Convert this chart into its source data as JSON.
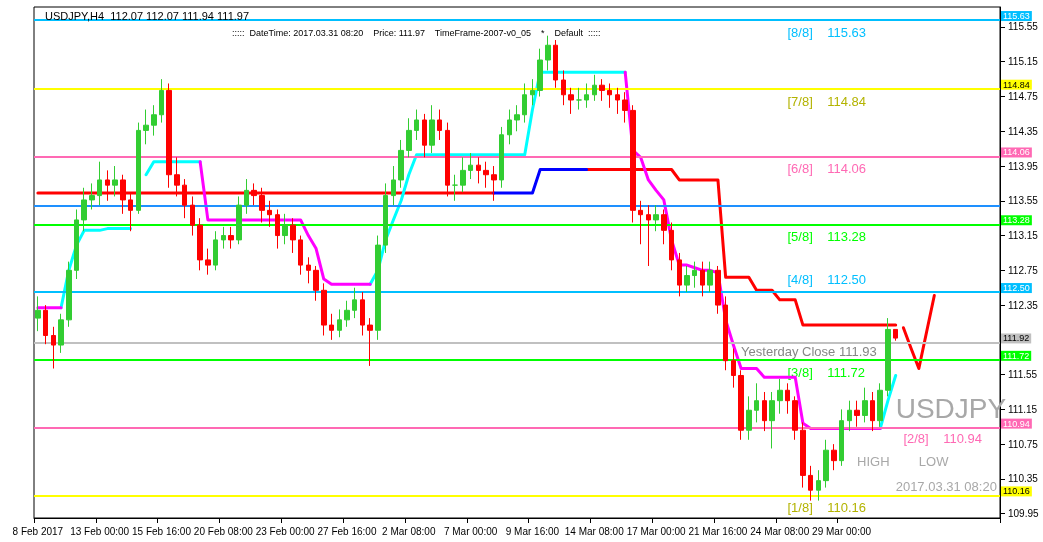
{
  "chart_data": {
    "type": "candlestick",
    "title": "USDJPY,H4  112.07 112.07 111.94 111.97",
    "subtitle": ":::::  DateTime: 2017.03.31 08:20    Price: 111.97    TimeFrame-2007-v0_05    *    Default  :::::",
    "categories": [
      "8 Feb 2017",
      null,
      null,
      null,
      null,
      null,
      null,
      null,
      "13 Feb 00:00",
      null,
      null,
      null,
      null,
      null,
      null,
      null,
      "15 Feb 16:00",
      null,
      null,
      null,
      null,
      null,
      null,
      null,
      "20 Feb 08:00",
      null,
      null,
      null,
      null,
      null,
      null,
      null,
      "23 Feb 00:00",
      null,
      null,
      null,
      null,
      null,
      null,
      null,
      "27 Feb 16:00",
      null,
      null,
      null,
      null,
      null,
      null,
      null,
      "2 Mar 08:00",
      null,
      null,
      null,
      null,
      null,
      null,
      null,
      "7 Mar 00:00",
      null,
      null,
      null,
      null,
      null,
      null,
      null,
      "9 Mar 16:00",
      null,
      null,
      null,
      null,
      null,
      null,
      null,
      "14 Mar 08:00",
      null,
      null,
      null,
      null,
      null,
      null,
      null,
      "17 Mar 00:00",
      null,
      null,
      null,
      null,
      null,
      null,
      null,
      "21 Mar 16:00",
      null,
      null,
      null,
      null,
      null,
      null,
      null,
      "24 Mar 08:00",
      null,
      null,
      null,
      null,
      null,
      null,
      null,
      "29 Mar 00:00",
      null,
      null,
      null,
      null,
      null,
      null,
      null,
      null,
      null,
      null,
      null,
      null,
      null,
      null,
      null,
      null,
      null,
      null,
      null,
      null
    ],
    "ylim": [
      109.9,
      115.78
    ],
    "yticks": [
      109.95,
      110.35,
      110.75,
      111.15,
      111.55,
      112.35,
      112.75,
      113.15,
      113.55,
      113.95,
      114.35,
      114.75,
      115.15,
      115.55
    ],
    "series": [
      {
        "type": "line",
        "color": "#ff0000",
        "values": [
          113.64,
          113.64,
          113.64,
          113.64,
          113.64,
          113.64,
          113.64,
          113.64,
          113.64,
          113.64,
          113.64,
          113.64,
          113.64,
          113.64,
          113.64,
          113.64,
          113.64,
          113.64,
          113.64,
          113.64,
          113.64,
          113.64,
          113.64,
          113.64,
          113.64,
          113.64,
          113.64,
          113.64,
          113.64,
          113.64,
          113.64,
          113.64,
          113.64,
          113.64,
          113.64,
          113.64,
          113.64,
          113.64,
          113.64,
          113.64,
          113.64,
          113.64,
          113.64,
          113.64,
          113.64,
          113.64,
          113.64,
          113.64,
          113.64,
          113.64,
          113.64,
          113.64,
          113.64,
          113.64,
          113.64,
          113.64,
          113.64,
          113.64,
          113.64,
          113.64,
          null,
          null,
          null,
          null,
          null,
          null,
          null,
          null,
          null,
          null,
          null,
          113.91,
          113.91,
          113.91,
          113.91,
          113.91,
          113.91,
          113.91,
          113.91,
          113.91,
          113.91,
          113.91,
          113.91,
          113.79,
          113.79,
          113.79,
          113.79,
          113.79,
          113.79,
          112.67,
          112.67,
          112.67,
          112.67,
          112.52,
          112.52,
          112.52,
          112.41,
          112.41,
          112.41,
          112.12,
          112.12,
          112.12,
          112.12,
          112.12,
          112.12,
          112.12,
          112.12,
          112.12,
          112.12,
          112.12,
          112.12,
          112.12,
          null,
          null,
          null,
          null,
          null,
          null,
          null,
          null,
          null,
          null,
          null,
          null,
          null
        ]
      },
      {
        "type": "line",
        "color": "#0000ff",
        "values": [
          null,
          null,
          null,
          null,
          null,
          null,
          null,
          null,
          null,
          null,
          null,
          null,
          null,
          null,
          null,
          null,
          null,
          null,
          null,
          null,
          null,
          null,
          null,
          null,
          null,
          null,
          null,
          null,
          null,
          null,
          null,
          null,
          null,
          null,
          null,
          null,
          null,
          null,
          null,
          null,
          null,
          null,
          null,
          null,
          null,
          null,
          null,
          null,
          null,
          null,
          null,
          null,
          null,
          null,
          null,
          null,
          null,
          null,
          null,
          113.64,
          113.64,
          113.64,
          113.64,
          113.64,
          113.64,
          113.91,
          113.91,
          113.91,
          113.91,
          113.91,
          113.91,
          113.91,
          null,
          null,
          null,
          null,
          null,
          null,
          null,
          null,
          null,
          null,
          null,
          null,
          null,
          null,
          null,
          null,
          null,
          null,
          null,
          null,
          null,
          null,
          null,
          null,
          null,
          null,
          null,
          null,
          null,
          null,
          null,
          null,
          null,
          null,
          null,
          null,
          null,
          null,
          null,
          null,
          null,
          null,
          null,
          null,
          null,
          null,
          null,
          null,
          null,
          null,
          null,
          null,
          null
        ]
      },
      {
        "type": "line",
        "color": "#00ffff",
        "values": [
          null,
          null,
          null,
          112.32,
          112.75,
          113.04,
          113.21,
          113.21,
          113.21,
          113.23,
          113.23,
          113.23,
          113.23,
          null,
          113.85,
          114.0,
          114.0,
          114.0,
          114.0,
          114.0,
          114.0,
          114.0,
          null,
          null,
          null,
          null,
          null,
          null,
          null,
          null,
          null,
          null,
          null,
          null,
          null,
          null,
          null,
          null,
          null,
          null,
          null,
          null,
          null,
          112.59,
          112.75,
          113.1,
          113.33,
          113.55,
          113.85,
          114.08,
          114.08,
          114.08,
          114.08,
          114.08,
          114.08,
          114.08,
          114.08,
          114.08,
          114.08,
          114.08,
          114.08,
          114.08,
          114.08,
          114.08,
          114.6,
          115.03,
          115.03,
          115.03,
          115.03,
          115.03,
          115.03,
          115.03,
          115.03,
          115.03,
          115.03,
          115.03,
          115.03,
          null,
          null,
          null,
          null,
          null,
          null,
          null,
          null,
          null,
          null,
          null,
          null,
          null,
          null,
          null,
          null,
          null,
          null,
          null,
          null,
          null,
          null,
          null,
          null,
          null,
          null,
          null,
          null,
          null,
          null,
          null,
          null,
          110.93,
          111.25,
          111.54,
          null,
          null,
          null,
          null,
          null,
          null,
          null,
          null,
          null,
          null,
          null,
          null,
          null
        ]
      },
      {
        "type": "line",
        "color": "#ff00ff",
        "values": [
          112.32,
          112.32,
          112.32,
          112.32,
          null,
          null,
          null,
          null,
          null,
          null,
          null,
          null,
          null,
          null,
          null,
          null,
          null,
          null,
          null,
          null,
          null,
          114.0,
          113.33,
          113.33,
          113.33,
          113.33,
          113.33,
          113.33,
          113.33,
          113.33,
          113.33,
          113.33,
          113.33,
          113.33,
          113.33,
          113.15,
          113.0,
          112.65,
          112.59,
          112.59,
          112.59,
          112.59,
          112.59,
          112.59,
          null,
          null,
          null,
          null,
          null,
          null,
          null,
          null,
          null,
          null,
          null,
          null,
          null,
          null,
          null,
          null,
          null,
          null,
          null,
          null,
          null,
          null,
          null,
          null,
          null,
          null,
          null,
          null,
          null,
          null,
          null,
          null,
          115.03,
          114.13,
          114.05,
          113.79,
          113.67,
          113.56,
          113.1,
          112.81,
          112.81,
          112.78,
          112.75,
          112.75,
          112.72,
          112.18,
          111.89,
          111.62,
          111.62,
          111.62,
          111.52,
          111.52,
          111.52,
          111.52,
          111.52,
          110.99,
          110.93,
          110.93,
          110.93,
          110.93,
          110.93,
          110.93,
          110.93,
          110.93,
          110.93,
          110.93,
          null,
          null,
          null,
          null,
          null,
          null,
          null,
          null,
          null,
          null,
          null,
          null,
          null,
          null,
          null
        ]
      },
      {
        "type": "line",
        "color": "#ff0000",
        "values": [
          null,
          null,
          null,
          null,
          null,
          null,
          null,
          null,
          null,
          null,
          null,
          null,
          null,
          null,
          null,
          null,
          null,
          null,
          null,
          null,
          null,
          null,
          null,
          null,
          null,
          null,
          null,
          null,
          null,
          null,
          null,
          null,
          null,
          null,
          null,
          null,
          null,
          null,
          null,
          null,
          null,
          null,
          null,
          null,
          null,
          null,
          null,
          null,
          null,
          null,
          null,
          null,
          null,
          null,
          null,
          null,
          null,
          null,
          null,
          null,
          null,
          null,
          null,
          null,
          null,
          null,
          null,
          null,
          null,
          null,
          null,
          null,
          null,
          null,
          null,
          null,
          null,
          null,
          null,
          null,
          null,
          null,
          null,
          null,
          null,
          null,
          null,
          null,
          null,
          null,
          null,
          null,
          null,
          null,
          null,
          null,
          null,
          null,
          null,
          null,
          null,
          null,
          null,
          null,
          null,
          null,
          null,
          null,
          null,
          null,
          null,
          null,
          112.09,
          111.85,
          111.62,
          112.04,
          112.46,
          null,
          null,
          null,
          null,
          null,
          null,
          null,
          null
        ]
      },
      {
        "type": "candlestick",
        "ohlc": [
          [
            112.2,
            112.45,
            112.05,
            112.29
          ],
          [
            112.29,
            112.35,
            111.9,
            112.0
          ],
          [
            112.0,
            112.1,
            111.62,
            111.89
          ],
          [
            111.89,
            112.25,
            111.8,
            112.18
          ],
          [
            112.18,
            112.85,
            112.1,
            112.75
          ],
          [
            112.75,
            113.45,
            112.65,
            113.33
          ],
          [
            113.33,
            113.7,
            113.2,
            113.56
          ],
          [
            113.56,
            113.75,
            113.45,
            113.61
          ],
          [
            113.61,
            114.0,
            113.5,
            113.79
          ],
          [
            113.79,
            113.9,
            113.55,
            113.73
          ],
          [
            113.73,
            113.95,
            113.6,
            113.79
          ],
          [
            113.79,
            113.85,
            113.4,
            113.56
          ],
          [
            113.56,
            113.65,
            113.2,
            113.44
          ],
          [
            113.44,
            114.45,
            113.4,
            114.36
          ],
          [
            114.36,
            114.6,
            114.2,
            114.42
          ],
          [
            114.42,
            114.65,
            114.3,
            114.54
          ],
          [
            114.54,
            114.95,
            114.45,
            114.82
          ],
          [
            114.82,
            114.9,
            113.7,
            113.85
          ],
          [
            113.85,
            114.05,
            113.6,
            113.73
          ],
          [
            113.73,
            113.8,
            113.35,
            113.5
          ],
          [
            113.5,
            113.6,
            113.15,
            113.27
          ],
          [
            113.27,
            113.35,
            112.75,
            112.87
          ],
          [
            112.87,
            113.0,
            112.7,
            112.81
          ],
          [
            112.81,
            113.2,
            112.75,
            113.1
          ],
          [
            113.1,
            113.25,
            113.0,
            113.15
          ],
          [
            113.15,
            113.25,
            113.0,
            113.1
          ],
          [
            113.1,
            113.6,
            113.05,
            113.5
          ],
          [
            113.5,
            113.8,
            113.4,
            113.67
          ],
          [
            113.67,
            113.75,
            113.5,
            113.61
          ],
          [
            113.61,
            113.7,
            113.3,
            113.44
          ],
          [
            113.44,
            113.55,
            113.25,
            113.39
          ],
          [
            113.39,
            113.45,
            113.0,
            113.15
          ],
          [
            113.15,
            113.4,
            113.05,
            113.27
          ],
          [
            113.27,
            113.35,
            112.95,
            113.1
          ],
          [
            113.1,
            113.15,
            112.7,
            112.81
          ],
          [
            112.81,
            112.9,
            112.6,
            112.75
          ],
          [
            112.75,
            112.8,
            112.4,
            112.52
          ],
          [
            112.52,
            112.6,
            112.0,
            112.12
          ],
          [
            112.12,
            112.25,
            111.95,
            112.06
          ],
          [
            112.06,
            112.3,
            111.98,
            112.18
          ],
          [
            112.18,
            112.4,
            112.1,
            112.29
          ],
          [
            112.29,
            112.55,
            112.2,
            112.41
          ],
          [
            112.41,
            112.5,
            112.0,
            112.12
          ],
          [
            112.12,
            112.2,
            111.65,
            112.06
          ],
          [
            112.06,
            113.15,
            111.95,
            113.04
          ],
          [
            113.04,
            113.75,
            112.95,
            113.61
          ],
          [
            113.61,
            113.95,
            113.5,
            113.79
          ],
          [
            113.79,
            114.25,
            113.7,
            114.13
          ],
          [
            114.13,
            114.5,
            114.05,
            114.36
          ],
          [
            114.36,
            114.6,
            114.25,
            114.48
          ],
          [
            114.48,
            114.55,
            114.05,
            114.19
          ],
          [
            114.19,
            114.65,
            114.1,
            114.48
          ],
          [
            114.48,
            114.6,
            114.25,
            114.36
          ],
          [
            114.36,
            114.45,
            113.6,
            113.73
          ],
          [
            113.73,
            113.85,
            113.55,
            113.73
          ],
          [
            113.73,
            114.05,
            113.65,
            113.9
          ],
          [
            113.9,
            114.1,
            113.8,
            113.96
          ],
          [
            113.96,
            114.05,
            113.75,
            113.9
          ],
          [
            113.9,
            114.0,
            113.7,
            113.85
          ],
          [
            113.85,
            113.95,
            113.55,
            113.79
          ],
          [
            113.79,
            114.4,
            113.7,
            114.31
          ],
          [
            114.31,
            114.6,
            114.2,
            114.48
          ],
          [
            114.48,
            114.65,
            114.35,
            114.54
          ],
          [
            114.54,
            114.9,
            114.45,
            114.77
          ],
          [
            114.77,
            114.95,
            114.65,
            114.82
          ],
          [
            114.82,
            115.3,
            114.75,
            115.17
          ],
          [
            115.17,
            115.45,
            115.05,
            115.34
          ],
          [
            115.34,
            115.4,
            114.85,
            114.94
          ],
          [
            114.94,
            115.05,
            114.65,
            114.77
          ],
          [
            114.77,
            114.85,
            114.55,
            114.71
          ],
          [
            114.71,
            114.85,
            114.6,
            114.71
          ],
          [
            114.71,
            114.9,
            114.62,
            114.77
          ],
          [
            114.77,
            115.0,
            114.7,
            114.88
          ],
          [
            114.88,
            114.95,
            114.7,
            114.82
          ],
          [
            114.82,
            114.9,
            114.62,
            114.77
          ],
          [
            114.77,
            114.85,
            114.55,
            114.71
          ],
          [
            114.71,
            114.8,
            114.45,
            114.59
          ],
          [
            114.59,
            114.65,
            113.3,
            113.44
          ],
          [
            113.44,
            113.55,
            113.05,
            113.39
          ],
          [
            113.39,
            113.5,
            112.8,
            113.33
          ],
          [
            113.33,
            113.5,
            113.2,
            113.39
          ],
          [
            113.39,
            113.45,
            113.05,
            113.21
          ],
          [
            113.21,
            113.3,
            112.75,
            112.87
          ],
          [
            112.87,
            112.95,
            112.45,
            112.58
          ],
          [
            112.58,
            112.8,
            112.5,
            112.69
          ],
          [
            112.69,
            112.85,
            112.55,
            112.75
          ],
          [
            112.75,
            112.85,
            112.45,
            112.58
          ],
          [
            112.58,
            112.85,
            112.5,
            112.75
          ],
          [
            112.75,
            112.8,
            112.25,
            112.35
          ],
          [
            112.35,
            112.45,
            111.6,
            111.71
          ],
          [
            111.71,
            111.85,
            111.4,
            111.54
          ],
          [
            111.54,
            111.6,
            110.8,
            110.91
          ],
          [
            110.91,
            111.3,
            110.8,
            111.14
          ],
          [
            111.14,
            111.45,
            111.0,
            111.25
          ],
          [
            111.25,
            111.35,
            110.9,
            111.02
          ],
          [
            111.02,
            111.35,
            110.7,
            111.25
          ],
          [
            111.25,
            111.5,
            111.1,
            111.37
          ],
          [
            111.37,
            111.45,
            111.1,
            111.25
          ],
          [
            111.25,
            111.3,
            110.8,
            110.91
          ],
          [
            110.91,
            111.0,
            110.25,
            110.39
          ],
          [
            110.39,
            110.5,
            110.1,
            110.22
          ],
          [
            110.22,
            110.45,
            110.1,
            110.33
          ],
          [
            110.33,
            110.8,
            110.25,
            110.68
          ],
          [
            110.68,
            110.75,
            110.45,
            110.56
          ],
          [
            110.56,
            111.15,
            110.5,
            111.02
          ],
          [
            111.02,
            111.25,
            110.9,
            111.14
          ],
          [
            111.14,
            111.25,
            110.95,
            111.08
          ],
          [
            111.08,
            111.4,
            111.0,
            111.25
          ],
          [
            111.25,
            111.35,
            110.9,
            111.02
          ],
          [
            111.02,
            111.45,
            110.95,
            111.37
          ],
          [
            111.37,
            112.2,
            111.3,
            112.07
          ],
          [
            112.07,
            112.07,
            111.94,
            111.97
          ],
          null,
          null,
          null,
          null,
          null,
          null,
          null,
          null,
          null,
          null,
          null,
          null,
          null
        ],
        "colors": [
          "#32cd32",
          "#ff0000",
          "#ff0000",
          "#32cd32",
          "#32cd32",
          "#32cd32",
          "#32cd32",
          "#32cd32",
          "#32cd32",
          "#ff0000",
          "#32cd32",
          "#ff0000",
          "#ff0000",
          "#32cd32",
          "#32cd32",
          "#32cd32",
          "#32cd32",
          "#ff0000",
          "#ff0000",
          "#ff0000",
          "#ff0000",
          "#ff0000",
          "#ff0000",
          "#32cd32",
          "#32cd32",
          "#ff0000",
          "#32cd32",
          "#32cd32",
          "#ff0000",
          "#ff0000",
          "#ff0000",
          "#ff0000",
          "#32cd32",
          "#ff0000",
          "#ff0000",
          "#ff0000",
          "#ff0000",
          "#ff0000",
          "#ff0000",
          "#32cd32",
          "#32cd32",
          "#32cd32",
          "#ff0000",
          "#ff0000",
          "#32cd32",
          "#32cd32",
          "#32cd32",
          "#32cd32",
          "#32cd32",
          "#32cd32",
          "#ff0000",
          "#32cd32",
          "#ff0000",
          "#ff0000",
          "#32cd32",
          "#32cd32",
          "#32cd32",
          "#ff0000",
          "#ff0000",
          "#ff0000",
          "#32cd32",
          "#32cd32",
          "#32cd32",
          "#32cd32",
          "#32cd32",
          "#32cd32",
          "#32cd32",
          "#ff0000",
          "#ff0000",
          "#ff0000",
          "#32cd32",
          "#32cd32",
          "#32cd32",
          "#ff0000",
          "#ff0000",
          "#ff0000",
          "#ff0000",
          "#ff0000",
          "#ff0000",
          "#ff0000",
          "#32cd32",
          "#ff0000",
          "#ff0000",
          "#ff0000",
          "#32cd32",
          "#32cd32",
          "#ff0000",
          "#32cd32",
          "#ff0000",
          "#ff0000",
          "#ff0000",
          "#ff0000",
          "#32cd32",
          "#32cd32",
          "#ff0000",
          "#32cd32",
          "#32cd32",
          "#ff0000",
          "#ff0000",
          "#ff0000",
          "#ff0000",
          "#32cd32",
          "#32cd32",
          "#ff0000",
          "#32cd32",
          "#32cd32",
          "#ff0000",
          "#32cd32",
          "#ff0000",
          "#32cd32",
          "#32cd32",
          "#ff0000",
          null,
          null,
          null,
          null,
          null,
          null,
          null,
          null,
          null,
          null,
          null,
          null,
          null
        ]
      }
    ],
    "ref_lines": [
      {
        "axis": "y",
        "value": 115.63,
        "label": "115.63",
        "color": "#00bfff"
      },
      {
        "axis": "y",
        "value": 114.84,
        "label": "114.84",
        "color": "#ffff00"
      },
      {
        "axis": "y",
        "value": 114.06,
        "label": "114.06",
        "color": "#ff69b4"
      },
      {
        "axis": "y",
        "value": 113.49,
        "color": "#1e90ff"
      },
      {
        "axis": "y",
        "value": 113.28,
        "label": "113.28",
        "color": "#00ff00"
      },
      {
        "axis": "y",
        "value": 112.5,
        "label": "112.50",
        "color": "#00bfff"
      },
      {
        "axis": "y",
        "value": 111.92,
        "label": "111.92",
        "color": "#c0c0c0"
      },
      {
        "axis": "y",
        "value": 111.72,
        "label": "111.72",
        "color": "#00ff00"
      },
      {
        "axis": "y",
        "value": 110.94,
        "label": "110.94",
        "color": "#ff69b4"
      },
      {
        "axis": "y",
        "value": 110.16,
        "label": "110.16",
        "color": "#ffff00"
      }
    ],
    "annotations": [
      "USDJPY",
      "HIGH",
      "LOW",
      "2017.03.31 08:20",
      {
        "text": "[8/8]    115.63",
        "y": 115.63
      },
      {
        "text": "[7/8]    114.84",
        "y": 114.84
      },
      {
        "text": "[6/8]    114.06",
        "y": 114.06
      },
      {
        "text": "[5/8]    113.28",
        "y": 113.28
      },
      {
        "text": "[4/8]    112.50",
        "y": 112.5
      },
      {
        "text": "Yesterday Close 111.93",
        "y": 111.92
      },
      {
        "text": "[3/8]    111.72",
        "y": 111.72
      },
      {
        "text": "[2/8]    110.94",
        "y": 110.94
      },
      {
        "text": "[1/8]    110.16",
        "y": 110.16
      }
    ]
  }
}
